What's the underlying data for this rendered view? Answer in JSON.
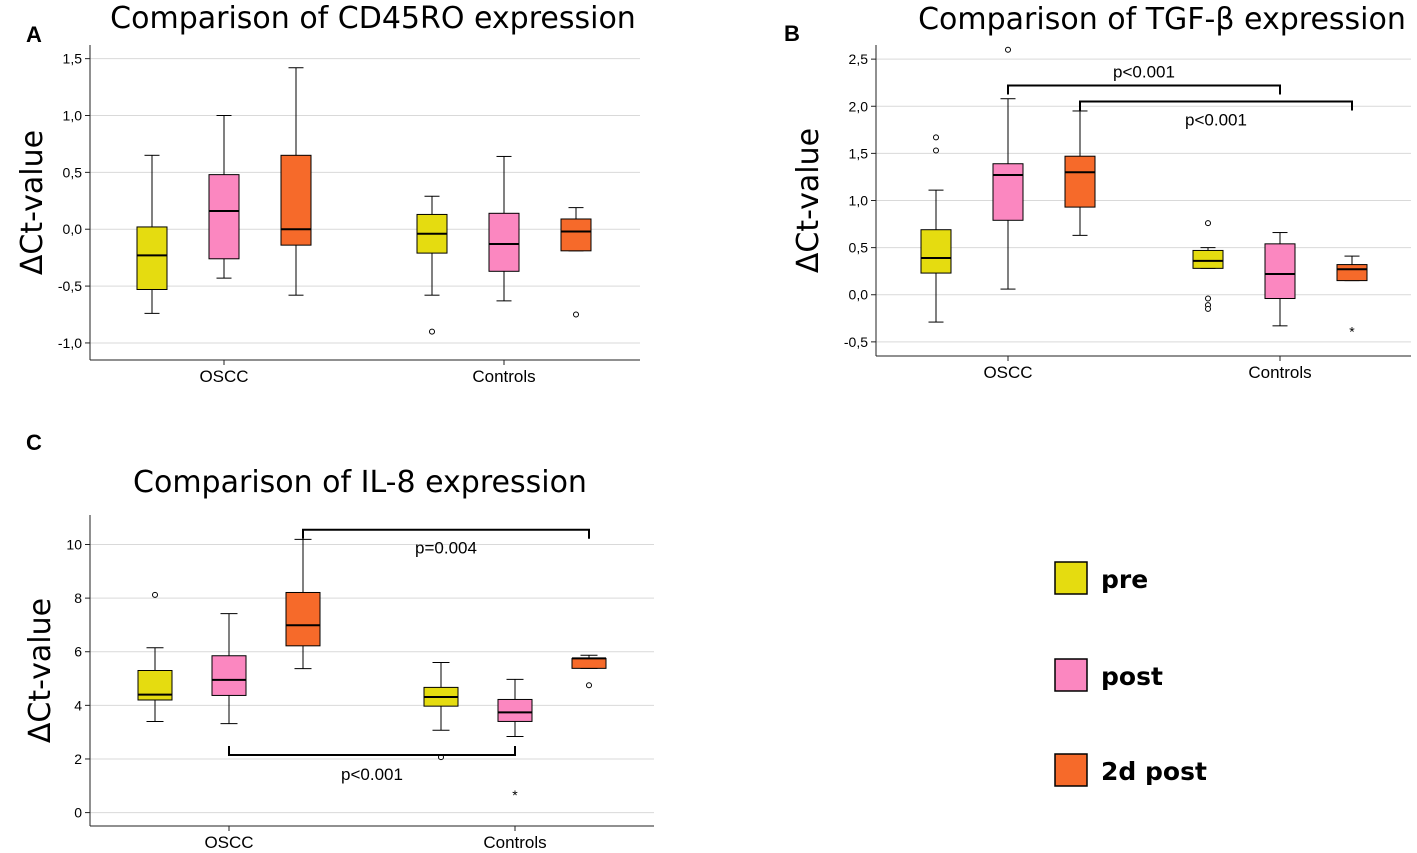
{
  "colors": {
    "pre": "#e5dc10",
    "post": "#fb87c0",
    "2d post": "#f66a2a",
    "grid": "#d9d9d9",
    "axis": "#222222"
  },
  "legend": [
    {
      "label": "pre",
      "color": "#e5dc10"
    },
    {
      "label": "post",
      "color": "#fb87c0"
    },
    {
      "label": "2d post",
      "color": "#f66a2a"
    }
  ],
  "chart_data": [
    {
      "panel": "A",
      "type": "boxplot",
      "title": "Comparison of CD45RO expression",
      "ylabel": "ΔCt-value",
      "xlabel": "",
      "groups": [
        "OSCC",
        "Controls"
      ],
      "series": [
        "pre",
        "post",
        "2d post"
      ],
      "ylim": [
        -1.15,
        1.62
      ],
      "yticks": [
        -1.0,
        -0.5,
        0.0,
        0.5,
        1.0,
        1.5
      ],
      "ytick_labels": [
        "-1,0",
        "-0,5",
        "0,0",
        "0,5",
        "1,0",
        "1,5"
      ],
      "boxes": [
        {
          "group": "OSCC",
          "series": "pre",
          "min": -0.74,
          "q1": -0.53,
          "median": -0.23,
          "q3": 0.02,
          "max": 0.65,
          "outliers": [],
          "extremes": []
        },
        {
          "group": "OSCC",
          "series": "post",
          "min": -0.43,
          "q1": -0.26,
          "median": 0.16,
          "q3": 0.48,
          "max": 1.0,
          "outliers": [],
          "extremes": []
        },
        {
          "group": "OSCC",
          "series": "2d post",
          "min": -0.58,
          "q1": -0.14,
          "median": 0.0,
          "q3": 0.65,
          "max": 1.42,
          "outliers": [],
          "extremes": []
        },
        {
          "group": "Controls",
          "series": "pre",
          "min": -0.58,
          "q1": -0.21,
          "median": -0.04,
          "q3": 0.13,
          "max": 0.29,
          "outliers": [
            -0.9
          ],
          "extremes": []
        },
        {
          "group": "Controls",
          "series": "post",
          "min": -0.63,
          "q1": -0.37,
          "median": -0.13,
          "q3": 0.14,
          "max": 0.64,
          "outliers": [],
          "extremes": []
        },
        {
          "group": "Controls",
          "series": "2d post",
          "min": -0.19,
          "q1": -0.19,
          "median": -0.02,
          "q3": 0.09,
          "max": 0.19,
          "outliers": [
            -0.75
          ],
          "extremes": []
        }
      ],
      "annotations": []
    },
    {
      "panel": "B",
      "type": "boxplot",
      "title": "Comparison of TGF-β expression",
      "ylabel": "ΔCt-value",
      "xlabel": "",
      "groups": [
        "OSCC",
        "Controls"
      ],
      "series": [
        "pre",
        "post",
        "2d post"
      ],
      "ylim": [
        -0.65,
        2.65
      ],
      "yticks": [
        -0.5,
        0.0,
        0.5,
        1.0,
        1.5,
        2.0,
        2.5
      ],
      "ytick_labels": [
        "-0,5",
        "0,0",
        "0,5",
        "1,0",
        "1,5",
        "2,0",
        "2,5"
      ],
      "boxes": [
        {
          "group": "OSCC",
          "series": "pre",
          "min": -0.29,
          "q1": 0.23,
          "median": 0.39,
          "q3": 0.69,
          "max": 1.11,
          "outliers": [
            1.53,
            1.67
          ],
          "extremes": []
        },
        {
          "group": "OSCC",
          "series": "post",
          "min": 0.06,
          "q1": 0.79,
          "median": 1.27,
          "q3": 1.39,
          "max": 2.08,
          "outliers": [
            2.6
          ],
          "extremes": []
        },
        {
          "group": "OSCC",
          "series": "2d post",
          "min": 0.63,
          "q1": 0.93,
          "median": 1.3,
          "q3": 1.47,
          "max": 1.95,
          "outliers": [],
          "extremes": []
        },
        {
          "group": "Controls",
          "series": "pre",
          "min": 0.28,
          "q1": 0.28,
          "median": 0.36,
          "q3": 0.47,
          "max": 0.5,
          "outliers": [
            -0.04,
            -0.11,
            -0.15,
            0.76
          ],
          "extremes": []
        },
        {
          "group": "Controls",
          "series": "post",
          "min": -0.33,
          "q1": -0.04,
          "median": 0.22,
          "q3": 0.54,
          "max": 0.66,
          "outliers": [],
          "extremes": []
        },
        {
          "group": "Controls",
          "series": "2d post",
          "min": 0.15,
          "q1": 0.15,
          "median": 0.27,
          "q3": 0.32,
          "max": 0.41,
          "outliers": [],
          "extremes": [
            -0.38
          ]
        }
      ],
      "annotations": [
        {
          "text": "p<0.001",
          "from": {
            "group": "OSCC",
            "series": "post"
          },
          "to": {
            "group": "Controls",
            "series": "post"
          },
          "y": 2.22,
          "ticks": "down",
          "label_pos": "above"
        },
        {
          "text": "p<0.001",
          "from": {
            "group": "OSCC",
            "series": "2d post"
          },
          "to": {
            "group": "Controls",
            "series": "2d post"
          },
          "y": 2.05,
          "ticks": "down",
          "label_pos": "below"
        }
      ]
    },
    {
      "panel": "C",
      "type": "boxplot",
      "title": "Comparison of IL-8 expression",
      "ylabel": "ΔCt-value",
      "xlabel": "",
      "groups": [
        "OSCC",
        "Controls"
      ],
      "series": [
        "pre",
        "post",
        "2d post"
      ],
      "ylim": [
        -0.5,
        11.1
      ],
      "yticks": [
        0,
        2,
        4,
        6,
        8,
        10
      ],
      "ytick_labels": [
        "0",
        "2",
        "4",
        "6",
        "8",
        "10"
      ],
      "boxes": [
        {
          "group": "OSCC",
          "series": "pre",
          "min": 3.4,
          "q1": 4.2,
          "median": 4.4,
          "q3": 5.3,
          "max": 6.15,
          "outliers": [
            8.12
          ],
          "extremes": []
        },
        {
          "group": "OSCC",
          "series": "post",
          "min": 3.32,
          "q1": 4.37,
          "median": 4.95,
          "q3": 5.85,
          "max": 7.42,
          "outliers": [],
          "extremes": []
        },
        {
          "group": "OSCC",
          "series": "2d post",
          "min": 5.37,
          "q1": 6.22,
          "median": 6.99,
          "q3": 8.21,
          "max": 10.19,
          "outliers": [],
          "extremes": []
        },
        {
          "group": "Controls",
          "series": "pre",
          "min": 3.07,
          "q1": 3.97,
          "median": 4.31,
          "q3": 4.67,
          "max": 5.6,
          "outliers": [
            2.07
          ],
          "extremes": []
        },
        {
          "group": "Controls",
          "series": "post",
          "min": 2.84,
          "q1": 3.4,
          "median": 3.74,
          "q3": 4.22,
          "max": 4.97,
          "outliers": [],
          "extremes": [
            0.7
          ]
        },
        {
          "group": "Controls",
          "series": "2d post",
          "min": 5.38,
          "q1": 5.38,
          "median": 5.75,
          "q3": 5.75,
          "max": 5.87,
          "outliers": [
            4.75
          ],
          "extremes": []
        }
      ],
      "annotations": [
        {
          "text": "p=0.004",
          "from": {
            "group": "OSCC",
            "series": "2d post"
          },
          "to": {
            "group": "Controls",
            "series": "2d post"
          },
          "y": 10.55,
          "ticks": "down",
          "label_pos": "below"
        },
        {
          "text": "p<0.001",
          "from": {
            "group": "OSCC",
            "series": "post"
          },
          "to": {
            "group": "Controls",
            "series": "post"
          },
          "y": 2.15,
          "ticks": "up",
          "label_pos": "below"
        }
      ]
    }
  ]
}
